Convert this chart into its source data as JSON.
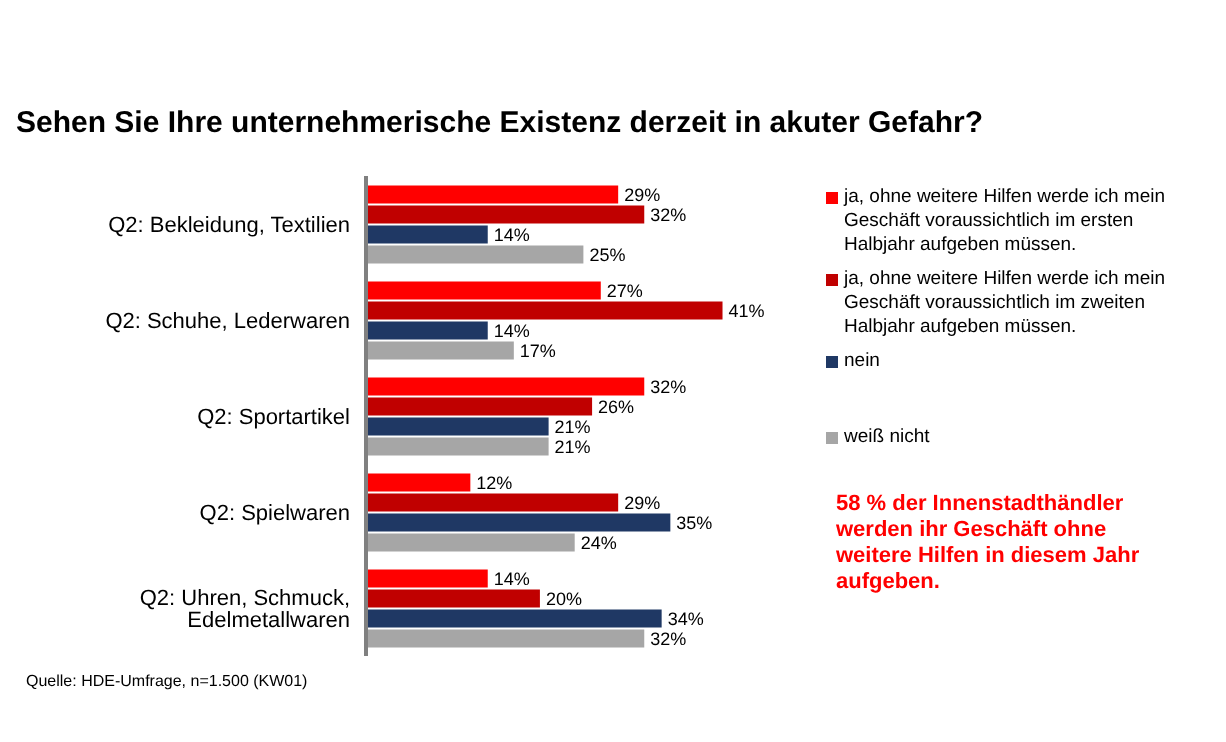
{
  "chart_data": {
    "type": "bar",
    "orientation": "horizontal",
    "title": "Sehen Sie Ihre unternehmerische Existenz derzeit in akuter Gefahr?",
    "categories": [
      "Q2: Bekleidung, Textilien",
      "Q2: Schuhe, Lederwaren",
      "Q2: Sportartikel",
      "Q2: Spielwaren",
      "Q2: Uhren, Schmuck, Edelmetallwaren"
    ],
    "series": [
      {
        "name": "ja, ohne weitere Hilfen werde ich mein Geschäft voraussichtlich im ersten Halbjahr aufgeben müssen.",
        "color": "#ff0000",
        "values": [
          29,
          27,
          32,
          12,
          14
        ],
        "value_labels": [
          "29%",
          "27%",
          "32%",
          "12%",
          "14%"
        ]
      },
      {
        "name": "ja, ohne weitere Hilfen werde ich mein Geschäft voraussichtlich im zweiten Halbjahr aufgeben müssen.",
        "color": "#c00000",
        "values": [
          32,
          41,
          26,
          29,
          20
        ],
        "value_labels": [
          "32%",
          "41%",
          "26%",
          "29%",
          "20%"
        ]
      },
      {
        "name": "nein",
        "color": "#1f3864",
        "values": [
          14,
          14,
          21,
          35,
          34
        ],
        "value_labels": [
          "14%",
          "14%",
          "21%",
          "35%",
          "34%"
        ]
      },
      {
        "name": "weiß nicht",
        "color": "#a6a6a6",
        "values": [
          25,
          17,
          21,
          24,
          32
        ],
        "value_labels": [
          "25%",
          "17%",
          "21%",
          "24%",
          "32%"
        ]
      }
    ],
    "legend": "right",
    "annotations": [
      "Quelle: HDE-Umfrage, n=1.500 (KW01)",
      "58 % der Innenstadthändler werden ihr Geschäft ohne weitere Hilfen in diesem Jahr aufgeben."
    ]
  }
}
